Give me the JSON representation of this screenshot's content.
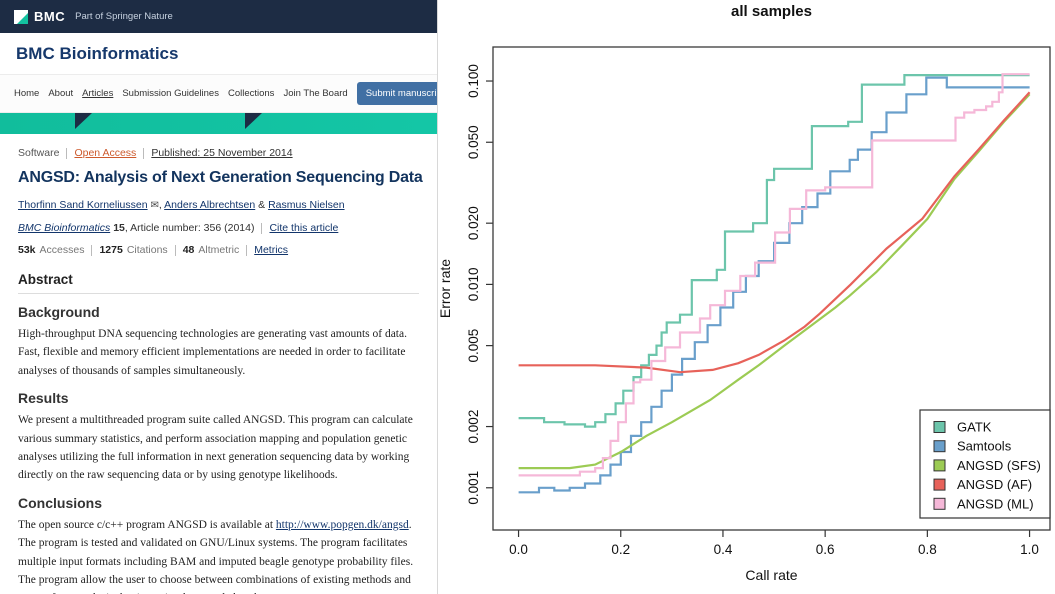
{
  "header": {
    "logo_text": "BMC",
    "tagline": "Part of Springer Nature",
    "journal_title": "BMC Bioinformatics",
    "nav_items": [
      "Home",
      "About",
      "Articles",
      "Submission Guidelines",
      "Collections",
      "Join The Board"
    ],
    "submit_button": "Submit manuscript",
    "submit_icon_glyph": "⧉"
  },
  "article": {
    "type_label": "Software",
    "access_label": "Open Access",
    "published_label": "Published: 25 November 2014",
    "title": "ANGSD: Analysis of Next Generation Sequencing Data",
    "author_1": "Thorfinn Sand Korneliussen",
    "email_icon_glyph": "✉",
    "sep_comma": ",",
    "author_2": "Anders Albrechtsen",
    "sep_amp": "&",
    "author_3": "Rasmus Nielsen",
    "journal_name": "BMC Bioinformatics",
    "journal_volume": "15",
    "article_number_text": ", Article number: 356 (2014)",
    "cite_link": "Cite this article",
    "metrics": {
      "accesses_value": "53k",
      "accesses_label": "Accesses",
      "citations_value": "1275",
      "citations_label": "Citations",
      "altmetric_value": "48",
      "altmetric_label": "Altmetric",
      "metrics_link": "Metrics"
    },
    "abstract_heading": "Abstract",
    "background_heading": "Background",
    "background_text": "High-throughput DNA sequencing technologies are generating vast amounts of data. Fast, flexible and memory efficient implementations are needed in order to facilitate analyses of thousands of samples simultaneously.",
    "results_heading": "Results",
    "results_text": "We present a multithreaded program suite called ANGSD. This program can calculate various summary statistics, and perform association mapping and population genetic analyses utilizing the full information in next generation sequencing data by working directly on the raw sequencing data or by using genotype likelihoods.",
    "conclusions_heading": "Conclusions",
    "conclusions_before_link": "The open source c/c++ program ANGSD is available at ",
    "conclusions_link": "http://www.popgen.dk/angsd",
    "conclusions_after_link": ". The program is tested and validated on GNU/Linux systems. The program facilitates multiple input formats including BAM and imputed beagle genotype probability files. The program allow the user to choose between combinations of existing methods and can perform analysis that is not implemented elsewhere."
  },
  "chart_data": {
    "type": "line",
    "title": "all samples",
    "xlabel": "Call rate",
    "ylabel": "Error rate",
    "x_ticks": [
      0.0,
      0.2,
      0.4,
      0.6,
      0.8,
      1.0
    ],
    "x_tick_labels": [
      "0.0",
      "0.2",
      "0.4",
      "0.6",
      "0.8",
      "1.0"
    ],
    "y_scale": "log",
    "y_ticks": [
      0.001,
      0.002,
      0.005,
      0.01,
      0.02,
      0.05,
      0.1
    ],
    "y_tick_labels": [
      "0.001",
      "0.002",
      "0.005",
      "0.010",
      "0.020",
      "0.050",
      "0.100"
    ],
    "xlim": [
      -0.05,
      1.04
    ],
    "ylim": [
      0.00062,
      0.147
    ],
    "grid": false,
    "legend_position": "bottom-right",
    "series": [
      {
        "name": "GATK",
        "color": "#6cc5ab",
        "interp": "step",
        "points": [
          [
            0,
            0.0022
          ],
          [
            0.05,
            0.0021
          ],
          [
            0.09,
            0.00205
          ],
          [
            0.13,
            0.002
          ],
          [
            0.15,
            0.0021
          ],
          [
            0.17,
            0.0023
          ],
          [
            0.19,
            0.0026
          ],
          [
            0.205,
            0.003
          ],
          [
            0.225,
            0.0035
          ],
          [
            0.24,
            0.004
          ],
          [
            0.255,
            0.0045
          ],
          [
            0.27,
            0.005
          ],
          [
            0.28,
            0.0058
          ],
          [
            0.29,
            0.0065
          ],
          [
            0.316,
            0.0071
          ],
          [
            0.339,
            0.0105
          ],
          [
            0.388,
            0.0118
          ],
          [
            0.404,
            0.0182
          ],
          [
            0.459,
            0.02
          ],
          [
            0.486,
            0.0326
          ],
          [
            0.5,
            0.037
          ],
          [
            0.574,
            0.06
          ],
          [
            0.645,
            0.063
          ],
          [
            0.672,
            0.096
          ],
          [
            0.755,
            0.107
          ],
          [
            1.0,
            0.107
          ]
        ]
      },
      {
        "name": "Samtools",
        "color": "#699fcb",
        "interp": "step",
        "points": [
          [
            0,
            0.00095
          ],
          [
            0.04,
            0.001
          ],
          [
            0.07,
            0.00097
          ],
          [
            0.1,
            0.001
          ],
          [
            0.13,
            0.00105
          ],
          [
            0.16,
            0.00115
          ],
          [
            0.18,
            0.0013
          ],
          [
            0.2,
            0.0015
          ],
          [
            0.22,
            0.0018
          ],
          [
            0.24,
            0.0021
          ],
          [
            0.26,
            0.0025
          ],
          [
            0.28,
            0.003
          ],
          [
            0.3,
            0.0036
          ],
          [
            0.32,
            0.0043
          ],
          [
            0.345,
            0.0052
          ],
          [
            0.37,
            0.0063
          ],
          [
            0.395,
            0.0077
          ],
          [
            0.42,
            0.0092
          ],
          [
            0.445,
            0.011
          ],
          [
            0.47,
            0.013
          ],
          [
            0.5,
            0.016
          ],
          [
            0.53,
            0.02
          ],
          [
            0.555,
            0.024
          ],
          [
            0.585,
            0.028
          ],
          [
            0.61,
            0.036
          ],
          [
            0.648,
            0.041
          ],
          [
            0.664,
            0.046
          ],
          [
            0.691,
            0.056
          ],
          [
            0.72,
            0.07
          ],
          [
            0.759,
            0.086
          ],
          [
            0.798,
            0.104
          ],
          [
            0.838,
            0.093
          ],
          [
            1.0,
            0.093
          ]
        ]
      },
      {
        "name": "ANGSD (SFS)",
        "color": "#9ccb54",
        "interp": "linear",
        "points": [
          [
            0,
            0.00125
          ],
          [
            0.1,
            0.00125
          ],
          [
            0.15,
            0.0013
          ],
          [
            0.2,
            0.0015
          ],
          [
            0.25,
            0.0018
          ],
          [
            0.3,
            0.0021
          ],
          [
            0.375,
            0.0027
          ],
          [
            0.43,
            0.0034
          ],
          [
            0.47,
            0.004
          ],
          [
            0.52,
            0.005
          ],
          [
            0.57,
            0.0062
          ],
          [
            0.62,
            0.0077
          ],
          [
            0.648,
            0.0088
          ],
          [
            0.7,
            0.0115
          ],
          [
            0.75,
            0.0155
          ],
          [
            0.8,
            0.021
          ],
          [
            0.853,
            0.033
          ],
          [
            0.9,
            0.045
          ],
          [
            0.95,
            0.063
          ],
          [
            1.0,
            0.086
          ]
        ]
      },
      {
        "name": "ANGSD (AF)",
        "color": "#e7625a",
        "interp": "linear",
        "points": [
          [
            0,
            0.004
          ],
          [
            0.15,
            0.004
          ],
          [
            0.25,
            0.0039
          ],
          [
            0.316,
            0.0037
          ],
          [
            0.38,
            0.0038
          ],
          [
            0.43,
            0.0041
          ],
          [
            0.47,
            0.0045
          ],
          [
            0.52,
            0.0053
          ],
          [
            0.56,
            0.0062
          ],
          [
            0.59,
            0.0072
          ],
          [
            0.65,
            0.01
          ],
          [
            0.72,
            0.015
          ],
          [
            0.79,
            0.021
          ],
          [
            0.853,
            0.034
          ],
          [
            0.9,
            0.046
          ],
          [
            0.95,
            0.064
          ],
          [
            1.0,
            0.088
          ]
        ]
      },
      {
        "name": "ANGSD (ML)",
        "color": "#f5b8d8",
        "interp": "step",
        "points": [
          [
            0,
            0.00115
          ],
          [
            0.08,
            0.00115
          ],
          [
            0.12,
            0.0012
          ],
          [
            0.15,
            0.00125
          ],
          [
            0.165,
            0.0014
          ],
          [
            0.18,
            0.0017
          ],
          [
            0.195,
            0.0021
          ],
          [
            0.21,
            0.0026
          ],
          [
            0.225,
            0.0033
          ],
          [
            0.238,
            0.0034
          ],
          [
            0.26,
            0.0042
          ],
          [
            0.287,
            0.0049
          ],
          [
            0.316,
            0.0058
          ],
          [
            0.355,
            0.0068
          ],
          [
            0.375,
            0.0079
          ],
          [
            0.404,
            0.0093
          ],
          [
            0.434,
            0.011
          ],
          [
            0.463,
            0.0128
          ],
          [
            0.502,
            0.018
          ],
          [
            0.531,
            0.0235
          ],
          [
            0.563,
            0.029
          ],
          [
            0.6,
            0.03
          ],
          [
            0.688,
            0.03
          ],
          [
            0.692,
            0.051
          ],
          [
            0.85,
            0.051
          ],
          [
            0.855,
            0.066
          ],
          [
            0.872,
            0.07
          ],
          [
            0.892,
            0.072
          ],
          [
            0.915,
            0.075
          ],
          [
            0.927,
            0.079
          ],
          [
            0.94,
            0.088
          ],
          [
            0.947,
            0.108
          ],
          [
            1.0,
            0.108
          ]
        ]
      }
    ]
  }
}
